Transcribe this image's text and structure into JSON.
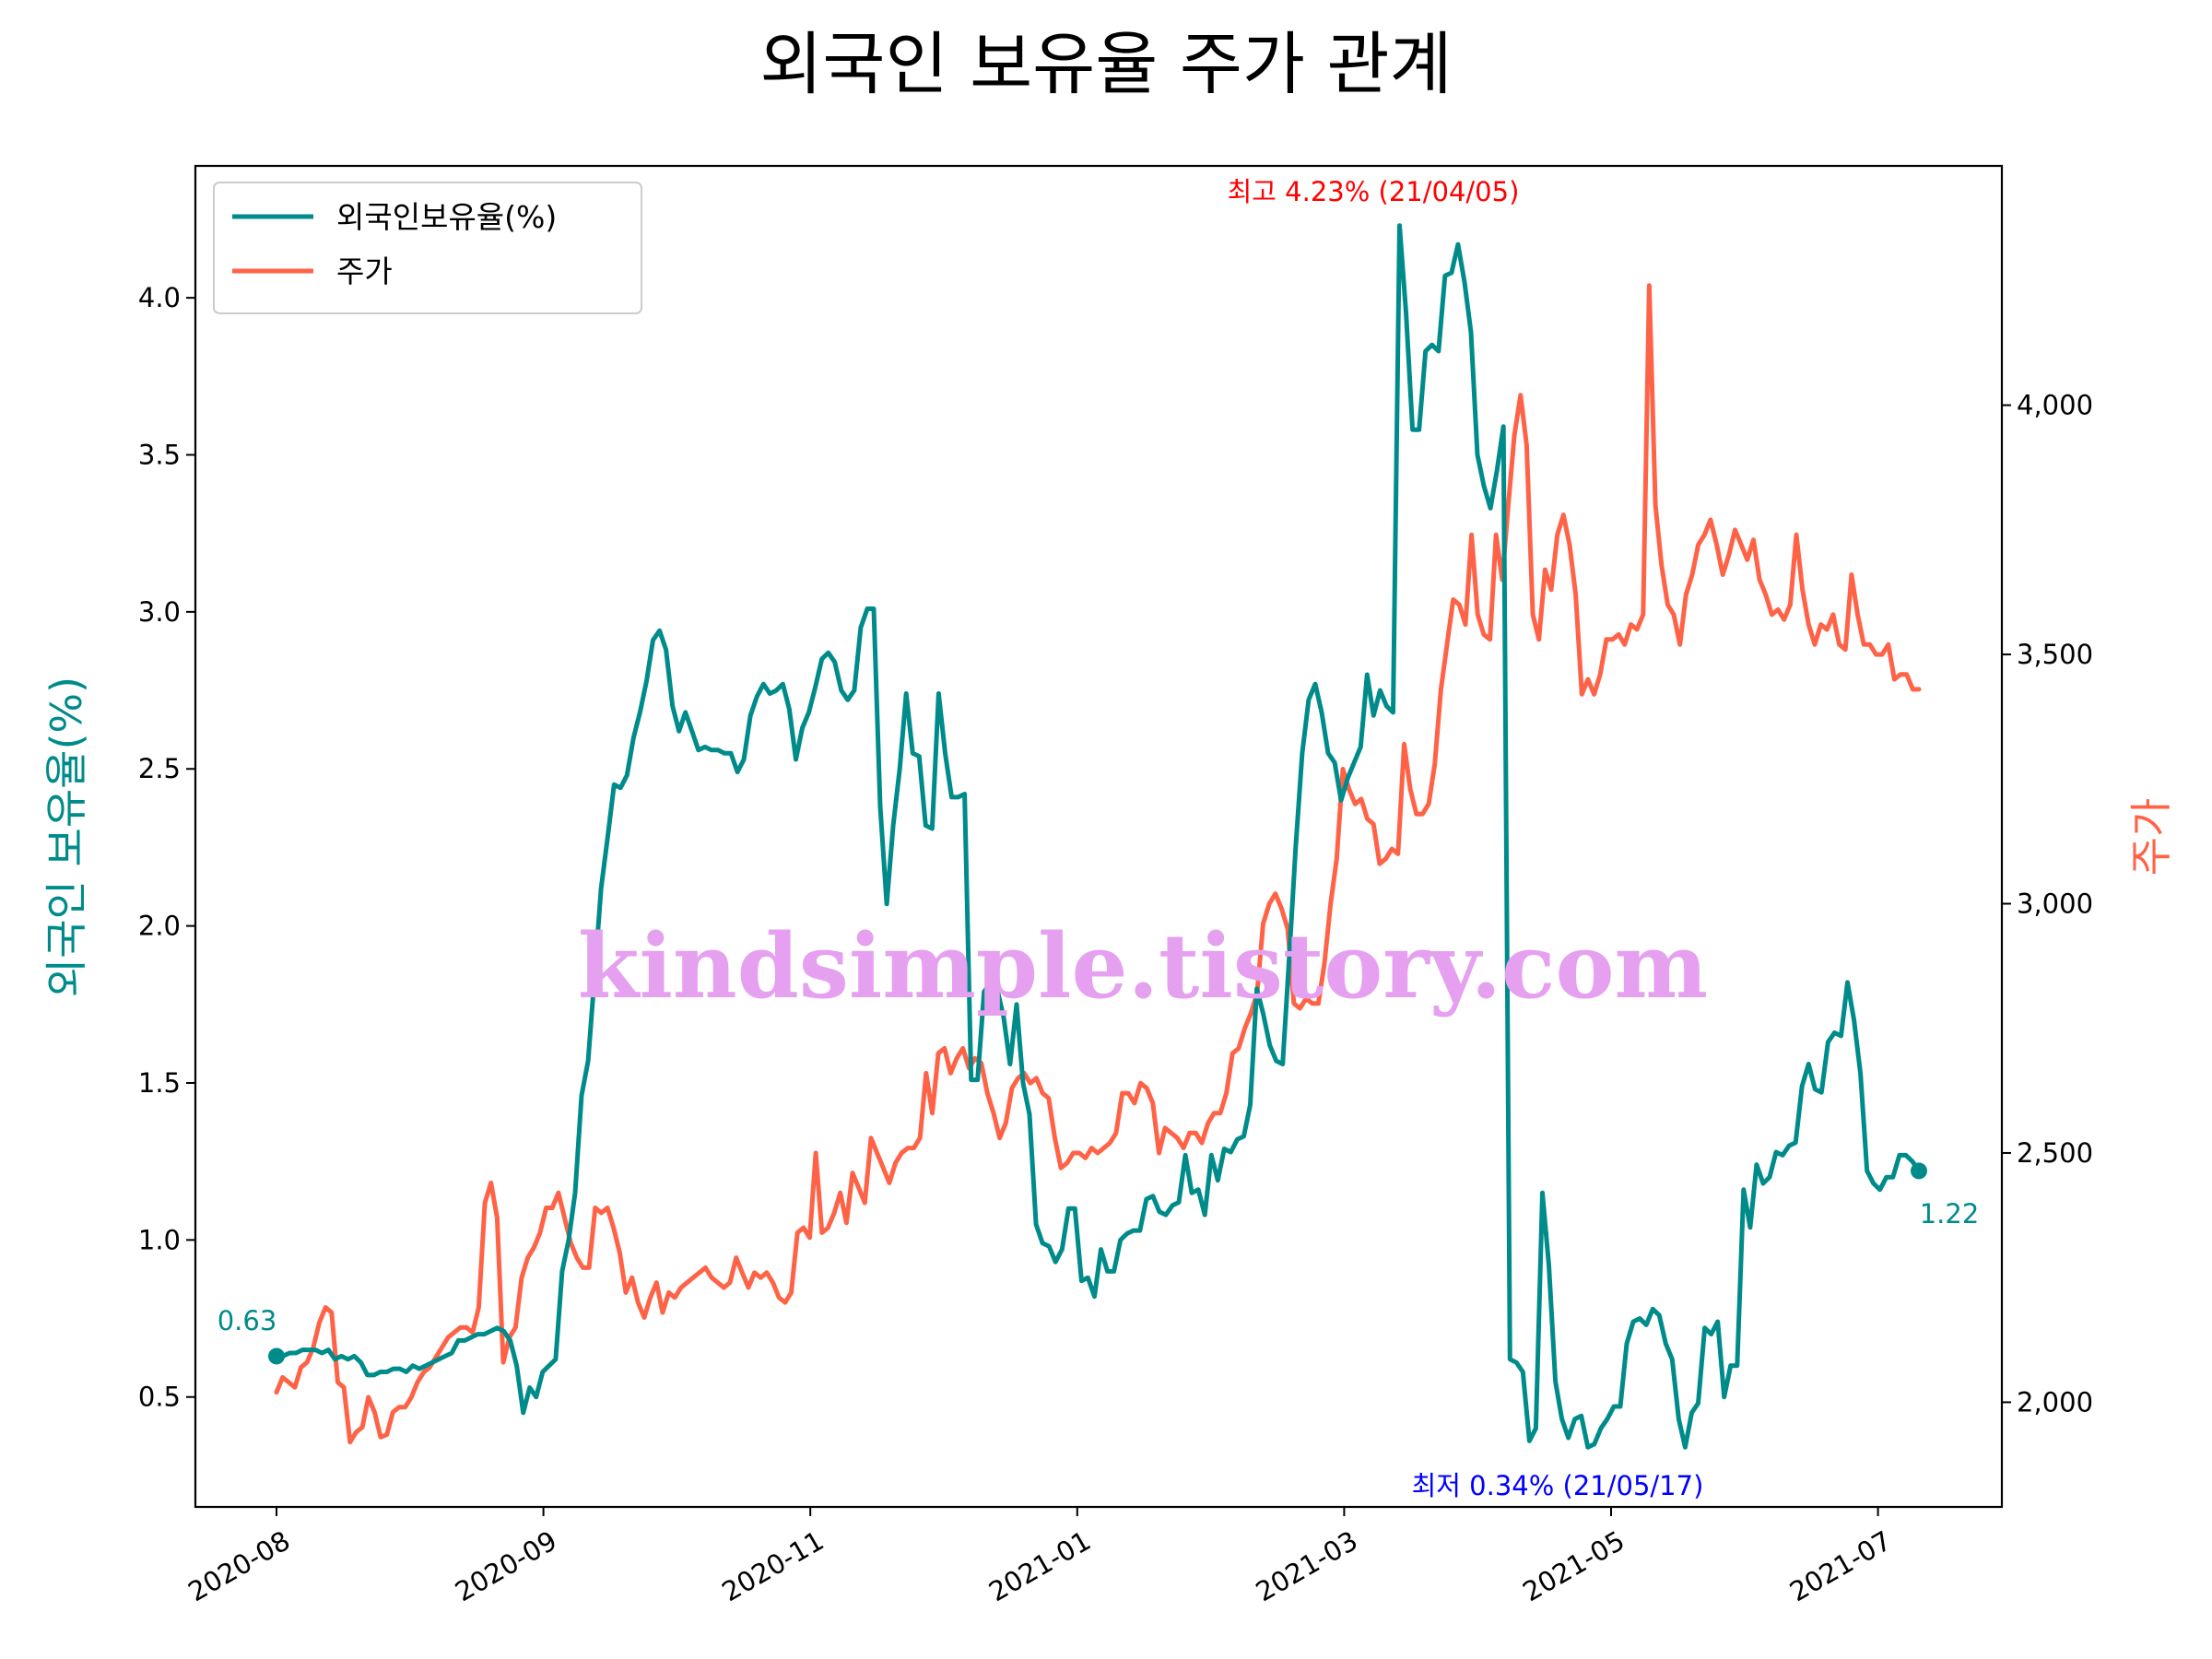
{
  "chart_data": {
    "type": "line",
    "title": "외국인 보유율 주가 관계",
    "ylabel_left": "외국인 보유율(%)",
    "ylabel_right": "주가",
    "x_ticks": [
      "2020-08",
      "2020-09",
      "2020-11",
      "2021-01",
      "2021-03",
      "2021-05",
      "2021-07"
    ],
    "y_left_ticks": [
      "0.5",
      "1.0",
      "1.5",
      "2.0",
      "2.5",
      "3.0",
      "3.5",
      "4.0"
    ],
    "y_right_ticks": [
      "2,000",
      "2,500",
      "3,000",
      "3,500",
      "4,000"
    ],
    "ylim_left": [
      0.15,
      4.42
    ],
    "ylim_right": [
      1790,
      4480
    ],
    "legend": {
      "position": "upper-left",
      "entries": [
        "외국인보유율(%)",
        "주가"
      ]
    },
    "colors": {
      "foreign": "#008B8B",
      "price": "#FF6347",
      "max": "#FF0000",
      "min": "#0000FF"
    },
    "series": [
      {
        "name": "외국인보유율(%)",
        "axis": "left",
        "values": [
          0.63,
          0.63,
          0.64,
          0.64,
          0.65,
          0.65,
          0.65,
          0.64,
          0.65,
          0.62,
          0.63,
          0.62,
          0.63,
          0.61,
          0.57,
          0.57,
          0.58,
          0.58,
          0.59,
          0.59,
          0.58,
          0.6,
          0.59,
          0.6,
          0.61,
          0.62,
          0.63,
          0.64,
          0.68,
          0.68,
          0.69,
          0.7,
          0.7,
          0.71,
          0.72,
          0.71,
          0.68,
          0.6,
          0.45,
          0.53,
          0.5,
          0.58,
          0.6,
          0.62,
          0.9,
          1.0,
          1.15,
          1.46,
          1.57,
          1.84,
          2.12,
          2.28,
          2.45,
          2.44,
          2.48,
          2.6,
          2.68,
          2.78,
          2.91,
          2.94,
          2.88,
          2.7,
          2.62,
          2.68,
          2.62,
          2.56,
          2.57,
          2.56,
          2.56,
          2.55,
          2.55,
          2.49,
          2.53,
          2.67,
          2.73,
          2.77,
          2.74,
          2.75,
          2.77,
          2.69,
          2.53,
          2.63,
          2.68,
          2.76,
          2.85,
          2.87,
          2.84,
          2.75,
          2.72,
          2.75,
          2.95,
          3.01,
          3.01,
          2.38,
          2.07,
          2.32,
          2.5,
          2.74,
          2.55,
          2.54,
          2.32,
          2.31,
          2.74,
          2.55,
          2.41,
          2.41,
          2.42,
          1.51,
          1.51,
          1.79,
          1.82,
          1.8,
          1.71,
          1.56,
          1.75,
          1.5,
          1.4,
          1.05,
          0.99,
          0.98,
          0.93,
          0.97,
          1.1,
          1.1,
          0.87,
          0.88,
          0.82,
          0.97,
          0.9,
          0.9,
          1.0,
          1.02,
          1.03,
          1.03,
          1.13,
          1.14,
          1.09,
          1.08,
          1.11,
          1.12,
          1.27,
          1.15,
          1.16,
          1.08,
          1.27,
          1.19,
          1.29,
          1.28,
          1.32,
          1.33,
          1.43,
          1.8,
          1.72,
          1.62,
          1.57,
          1.56,
          1.9,
          2.25,
          2.55,
          2.72,
          2.77,
          2.68,
          2.55,
          2.52,
          2.4,
          2.47,
          2.52,
          2.57,
          2.8,
          2.67,
          2.75,
          2.7,
          2.68,
          4.23,
          3.95,
          3.58,
          3.58,
          3.83,
          3.85,
          3.83,
          4.07,
          4.08,
          4.17,
          4.05,
          3.89,
          3.5,
          3.4,
          3.33,
          3.45,
          3.59,
          0.62,
          0.61,
          0.58,
          0.36,
          0.4,
          1.15,
          0.92,
          0.55,
          0.43,
          0.37,
          0.43,
          0.44,
          0.34,
          0.35,
          0.4,
          0.43,
          0.47,
          0.47,
          0.67,
          0.74,
          0.75,
          0.73,
          0.78,
          0.76,
          0.67,
          0.62,
          0.43,
          0.34,
          0.45,
          0.48,
          0.72,
          0.7,
          0.74,
          0.5,
          0.6,
          0.6,
          1.16,
          1.04,
          1.24,
          1.18,
          1.2,
          1.28,
          1.27,
          1.3,
          1.31,
          1.49,
          1.56,
          1.48,
          1.47,
          1.63,
          1.66,
          1.65,
          1.82,
          1.7,
          1.53,
          1.22,
          1.18,
          1.16,
          1.2,
          1.2,
          1.27,
          1.27,
          1.25,
          1.22
        ]
      },
      {
        "name": "주가",
        "axis": "right",
        "values": [
          2020,
          2050,
          2040,
          2030,
          2070,
          2080,
          2110,
          2160,
          2190,
          2180,
          2040,
          2030,
          1920,
          1940,
          1950,
          2010,
          1980,
          1930,
          1935,
          1980,
          1990,
          1990,
          2010,
          2040,
          2060,
          2070,
          2090,
          2110,
          2130,
          2140,
          2150,
          2150,
          2140,
          2190,
          2400,
          2440,
          2370,
          2080,
          2130,
          2150,
          2250,
          2290,
          2310,
          2340,
          2390,
          2390,
          2420,
          2370,
          2320,
          2290,
          2270,
          2270,
          2390,
          2380,
          2390,
          2350,
          2300,
          2220,
          2250,
          2200,
          2170,
          2210,
          2240,
          2180,
          2220,
          2210,
          2230,
          2240,
          2250,
          2260,
          2270,
          2250,
          2240,
          2230,
          2240,
          2290,
          2260,
          2230,
          2260,
          2250,
          2260,
          2240,
          2210,
          2200,
          2220,
          2340,
          2350,
          2330,
          2500,
          2340,
          2350,
          2380,
          2420,
          2360,
          2460,
          2430,
          2400,
          2530,
          2500,
          2470,
          2440,
          2480,
          2500,
          2510,
          2510,
          2530,
          2660,
          2580,
          2700,
          2710,
          2660,
          2690,
          2710,
          2670,
          2690,
          2680,
          2620,
          2580,
          2530,
          2560,
          2630,
          2650,
          2660,
          2640,
          2650,
          2620,
          2610,
          2530,
          2470,
          2480,
          2500,
          2500,
          2490,
          2510,
          2500,
          2510,
          2520,
          2540,
          2620,
          2620,
          2600,
          2640,
          2630,
          2600,
          2500,
          2550,
          2540,
          2530,
          2510,
          2540,
          2540,
          2520,
          2560,
          2580,
          2580,
          2620,
          2700,
          2710,
          2750,
          2780,
          2820,
          2960,
          3000,
          3020,
          2990,
          2950,
          2800,
          2790,
          2810,
          2800,
          2800,
          2880,
          3000,
          3090,
          3270,
          3230,
          3200,
          3210,
          3170,
          3160,
          3080,
          3090,
          3110,
          3100,
          3320,
          3230,
          3180,
          3180,
          3200,
          3280,
          3430,
          3520,
          3610,
          3600,
          3560,
          3740,
          3580,
          3540,
          3530,
          3740,
          3650,
          3800,
          3940,
          4020,
          3920,
          3580,
          3530,
          3670,
          3630,
          3740,
          3780,
          3720,
          3620,
          3420,
          3450,
          3420,
          3460,
          3530,
          3530,
          3540,
          3520,
          3560,
          3550,
          3580,
          4240,
          3800,
          3680,
          3600,
          3580,
          3520,
          3620,
          3660,
          3720,
          3740,
          3770,
          3720,
          3660,
          3700,
          3750,
          3720,
          3690,
          3730,
          3650,
          3620,
          3580,
          3590,
          3570,
          3600,
          3740,
          3630,
          3560,
          3520,
          3560,
          3550,
          3580,
          3520,
          3510,
          3660,
          3580,
          3520,
          3520,
          3500,
          3500,
          3520,
          3450,
          3460,
          3460,
          3430,
          3430
        ]
      }
    ],
    "annotations": {
      "start": "0.63",
      "end": "1.22",
      "max": "최고 4.23% (21/04/05)",
      "min": "최저 0.34% (21/05/17)"
    }
  },
  "watermark": "kindsimple.tistory.com"
}
